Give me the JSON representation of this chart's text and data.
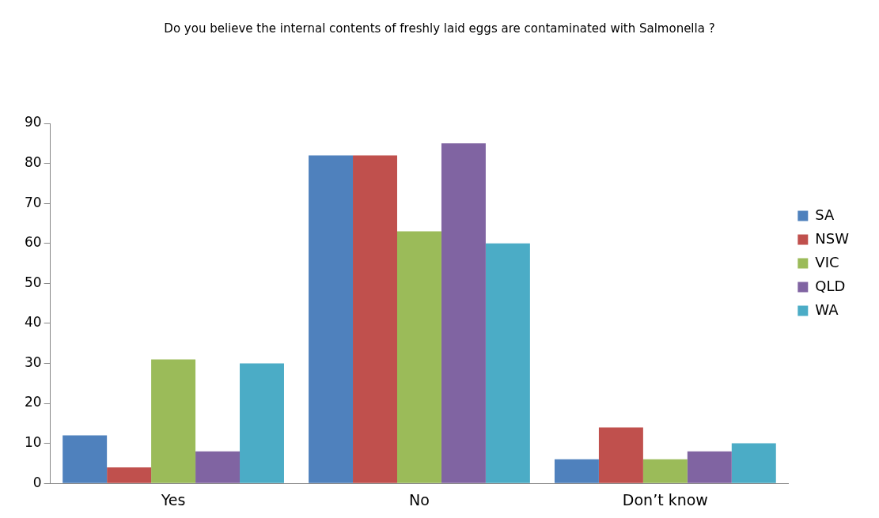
{
  "chart_data": {
    "type": "bar",
    "title": "Do you believe the internal contents of freshly laid eggs are contaminated with Salmonella ?",
    "categories": [
      "Yes",
      "No",
      "Don’t know"
    ],
    "series": [
      {
        "name": "SA",
        "color": "#4f81bd",
        "values": [
          12,
          82,
          6
        ]
      },
      {
        "name": "NSW",
        "color": "#c0504d",
        "values": [
          4,
          82,
          14
        ]
      },
      {
        "name": "VIC",
        "color": "#9bbb59",
        "values": [
          31,
          63,
          6
        ]
      },
      {
        "name": "QLD",
        "color": "#8064a2",
        "values": [
          8,
          85,
          8
        ]
      },
      {
        "name": "WA",
        "color": "#4bacc6",
        "values": [
          30,
          60,
          10
        ]
      }
    ],
    "ylim": [
      0,
      90
    ],
    "yticks": [
      0,
      10,
      20,
      30,
      40,
      50,
      60,
      70,
      80,
      90
    ],
    "grid": false,
    "legend": "right"
  }
}
